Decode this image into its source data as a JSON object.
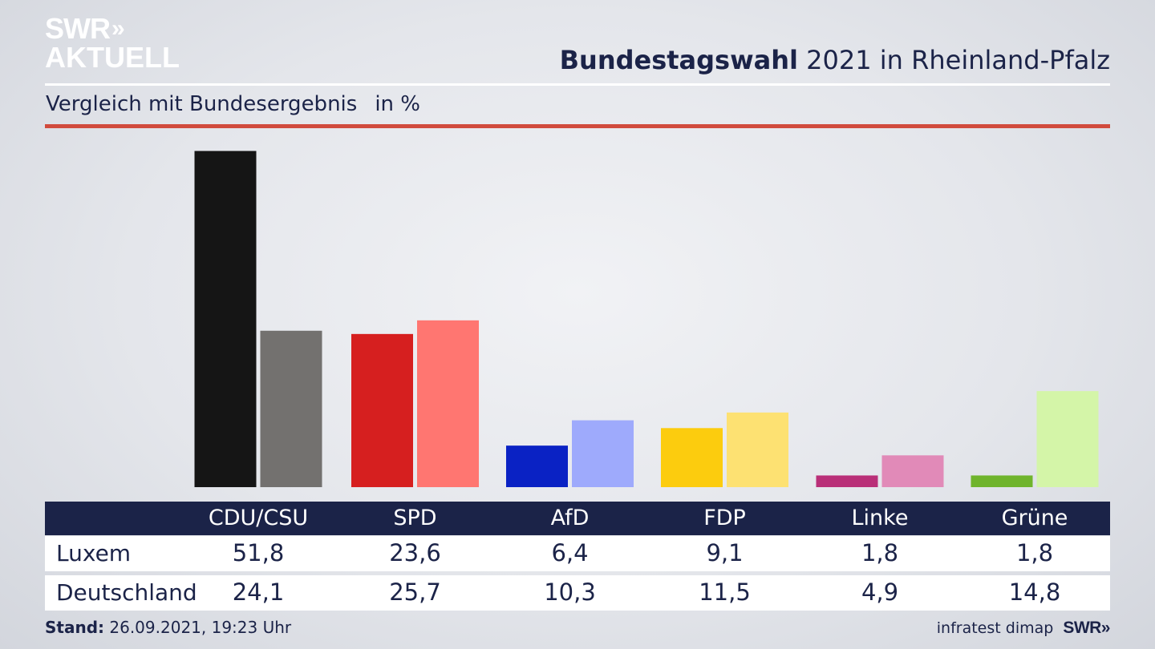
{
  "header": {
    "logo_line1": "SWR",
    "logo_chevrons": "»",
    "logo_line2": "AKTUELL",
    "title_bold": "Bundestagswahl",
    "title_rest": "2021 in Rheinland-Pfalz",
    "subtitle": "Vergleich mit Bundesergebnis",
    "unit": "in %"
  },
  "chart_data": {
    "type": "bar",
    "title": "Bundestagswahl 2021 in Rheinland-Pfalz",
    "subtitle": "Vergleich mit Bundesergebnis",
    "unit": "in %",
    "categories": [
      "CDU/CSU",
      "SPD",
      "AfD",
      "FDP",
      "Linke",
      "Grüne"
    ],
    "series": [
      {
        "name": "Luxem",
        "values": [
          51.8,
          23.6,
          6.4,
          9.1,
          1.8,
          1.8
        ],
        "colors": [
          "#151515",
          "#d61f1f",
          "#0a22c4",
          "#fccc0e",
          "#b92f78",
          "#6fb42c"
        ]
      },
      {
        "name": "Deutschland",
        "values": [
          24.1,
          25.7,
          10.3,
          11.5,
          4.9,
          14.8
        ],
        "colors": [
          "#73716f",
          "#ff7671",
          "#9eaafc",
          "#fde172",
          "#e18ab8",
          "#d4f5a8"
        ]
      }
    ],
    "value_labels": [
      [
        "51,8",
        "23,6",
        "6,4",
        "9,1",
        "1,8",
        "1,8"
      ],
      [
        "24,1",
        "25,7",
        "10,3",
        "11,5",
        "4,9",
        "14,8"
      ]
    ],
    "grid": false,
    "legend": "table-below"
  },
  "footer": {
    "stand_label": "Stand:",
    "stand_value": "26.09.2021, 19:23 Uhr",
    "source": "infratest dimap",
    "brand": "SWR»"
  }
}
